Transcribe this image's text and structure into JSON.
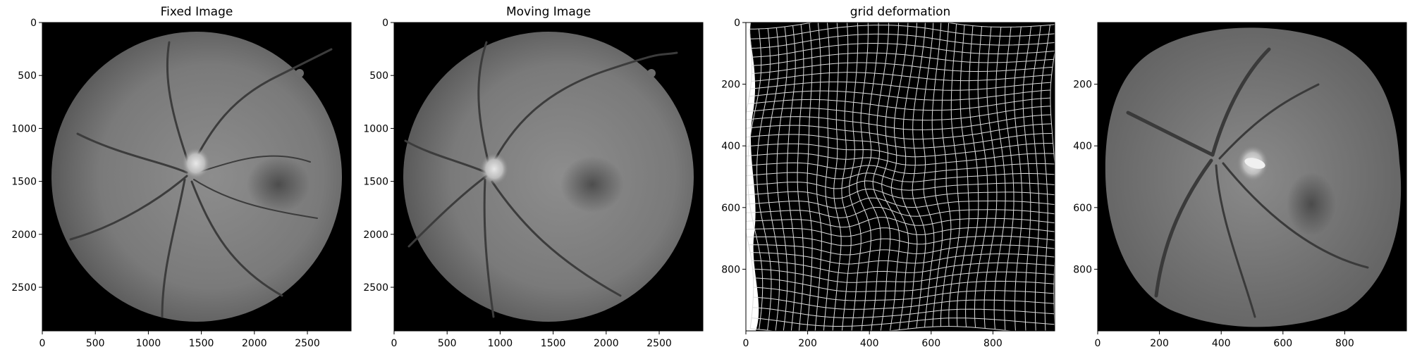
{
  "figure": {
    "panels": [
      {
        "title": "Fixed Image",
        "content": "retina-fundus",
        "x_ticks": [
          "0",
          "500",
          "1000",
          "1500",
          "2000",
          "2500"
        ],
        "y_ticks": [
          "0",
          "500",
          "1000",
          "1500",
          "2000",
          "2500"
        ],
        "x_range": [
          0,
          2912
        ],
        "y_range": [
          2912,
          0
        ]
      },
      {
        "title": "Moving Image",
        "content": "retina-fundus",
        "x_ticks": [
          "0",
          "500",
          "1000",
          "1500",
          "2000",
          "2500"
        ],
        "y_ticks": [
          "0",
          "500",
          "1000",
          "1500",
          "2000",
          "2500"
        ],
        "x_range": [
          0,
          2912
        ],
        "y_range": [
          2912,
          0
        ]
      },
      {
        "title": "grid deformation",
        "content": "deformation-grid",
        "x_ticks": [
          "0",
          "200",
          "400",
          "600",
          "800"
        ],
        "y_ticks": [
          "0",
          "200",
          "400",
          "600",
          "800"
        ],
        "x_range": [
          0,
          1000
        ],
        "y_range": [
          1000,
          0
        ]
      },
      {
        "title": "",
        "content": "warped-retina",
        "x_ticks": [
          "0",
          "200",
          "400",
          "600",
          "800"
        ],
        "y_ticks": [
          "200",
          "400",
          "600",
          "800"
        ],
        "x_range": [
          0,
          1000
        ],
        "y_range": [
          1000,
          0
        ]
      }
    ]
  },
  "colors": {
    "background": "#000000",
    "retina_center": "#8e8e8e",
    "retina_edge": "#555555",
    "vessel": "#3a3a3a",
    "optic_disc": "#e6e6e6",
    "grid_line": "#e0e0e0"
  }
}
